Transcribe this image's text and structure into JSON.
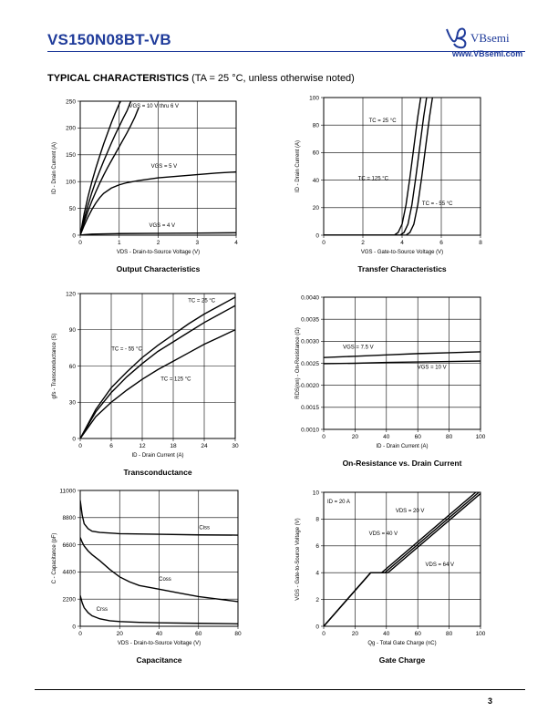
{
  "header": {
    "part_number": "VS150N08BT-VB",
    "brand_name": "VBsemi",
    "brand_url": "www.VBsemi.com"
  },
  "section": {
    "heading_bold": "TYPICAL CHARACTERISTICS",
    "heading_rest": " (TA = 25 °C, unless otherwise noted)"
  },
  "page_number": "3",
  "colors": {
    "brand": "#1f3b9a",
    "line": "#000000"
  },
  "chart_data": [
    {
      "id": "output",
      "type": "line",
      "title": "Output Characteristics",
      "xlabel": "VDS - Drain-to-Source Voltage (V)",
      "ylabel": "ID - Drain Current (A)",
      "xlim": [
        0,
        4
      ],
      "ylim": [
        0,
        250
      ],
      "xticks": [
        0,
        1,
        2,
        3,
        4
      ],
      "yticks": [
        0,
        50,
        100,
        150,
        200,
        250
      ],
      "xtick_labels": [
        "0",
        "1",
        "2",
        "3",
        "4"
      ],
      "ytick_labels": [
        "0",
        "50",
        "100",
        "150",
        "200",
        "250"
      ],
      "grid": true,
      "series": [
        {
          "name": "VGS = 10 V thru 6 V",
          "x": [
            0,
            0.1,
            0.2,
            0.3,
            0.4,
            0.5,
            0.6,
            0.7,
            0.8,
            0.9,
            1.0,
            1.08
          ],
          "y": [
            0,
            40,
            72,
            100,
            125,
            148,
            170,
            190,
            210,
            228,
            245,
            255
          ]
        },
        {
          "name": "",
          "x": [
            0,
            0.1,
            0.2,
            0.3,
            0.4,
            0.5,
            0.6,
            0.7,
            0.8,
            0.9,
            1.0,
            1.1,
            1.2,
            1.3
          ],
          "y": [
            0,
            30,
            56,
            80,
            101,
            120,
            138,
            155,
            172,
            188,
            203,
            218,
            232,
            250
          ]
        },
        {
          "name": "",
          "x": [
            0,
            0.1,
            0.2,
            0.3,
            0.4,
            0.5,
            0.6,
            0.7,
            0.8,
            0.9,
            1.0,
            1.1,
            1.2,
            1.3,
            1.4,
            1.5
          ],
          "y": [
            0,
            24,
            45,
            64,
            81,
            97,
            112,
            126,
            139,
            152,
            165,
            178,
            191,
            205,
            220,
            238
          ]
        },
        {
          "name": "VGS = 5 V",
          "x": [
            0,
            0.1,
            0.2,
            0.3,
            0.4,
            0.5,
            0.6,
            0.8,
            1.0,
            1.2,
            1.5,
            2.0,
            2.5,
            3.0,
            3.5,
            4.0
          ],
          "y": [
            0,
            18,
            34,
            48,
            60,
            70,
            78,
            88,
            94,
            98,
            102,
            107,
            110,
            113,
            116,
            118
          ]
        },
        {
          "name": "VGS = 4 V",
          "x": [
            0,
            0.1,
            0.3,
            0.6,
            1.0,
            2.0,
            3.0,
            4.0
          ],
          "y": [
            0,
            1,
            2,
            2.5,
            3,
            3.5,
            4,
            4.5
          ]
        }
      ]
    },
    {
      "id": "transfer",
      "type": "line",
      "title": "Transfer Characteristics",
      "xlabel": "VGS - Gate-to-Source Voltage (V)",
      "ylabel": "ID - Drain Current (A)",
      "xlim": [
        0,
        8
      ],
      "ylim": [
        0,
        100
      ],
      "xticks": [
        0,
        2,
        4,
        6,
        8
      ],
      "yticks": [
        0,
        20,
        40,
        60,
        80,
        100
      ],
      "xtick_labels": [
        "0",
        "2",
        "4",
        "6",
        "8"
      ],
      "ytick_labels": [
        "0",
        "20",
        "40",
        "60",
        "80",
        "100"
      ],
      "grid": true,
      "series": [
        {
          "name": "TC = 125 °C",
          "x": [
            0,
            3.6,
            3.8,
            4.0,
            4.2,
            4.4,
            4.6,
            4.8,
            4.95
          ],
          "y": [
            0,
            0,
            2,
            8,
            22,
            42,
            64,
            86,
            100
          ]
        },
        {
          "name": "TC = 25 °C",
          "x": [
            0,
            3.9,
            4.1,
            4.3,
            4.5,
            4.7,
            4.9,
            5.1,
            5.25
          ],
          "y": [
            0,
            0,
            2,
            8,
            22,
            42,
            64,
            86,
            100
          ]
        },
        {
          "name": "TC = - 55 °C",
          "x": [
            0,
            4.2,
            4.4,
            4.6,
            4.8,
            5.0,
            5.2,
            5.4,
            5.55
          ],
          "y": [
            0,
            0,
            2,
            8,
            22,
            42,
            64,
            86,
            100
          ]
        }
      ]
    },
    {
      "id": "transconductance",
      "type": "line",
      "title": "Transconductance",
      "xlabel": "ID - Drain Current (A)",
      "ylabel": "gfs - Transconductance (S)",
      "xlim": [
        0,
        30
      ],
      "ylim": [
        0,
        120
      ],
      "xticks": [
        0,
        6,
        12,
        18,
        24,
        30
      ],
      "yticks": [
        0,
        30,
        60,
        90,
        120
      ],
      "xtick_labels": [
        "0",
        "6",
        "12",
        "18",
        "24",
        "30"
      ],
      "ytick_labels": [
        "0",
        "30",
        "60",
        "90",
        "120"
      ],
      "grid": true,
      "series": [
        {
          "name": "TC = 25 °C",
          "x": [
            0,
            3,
            6,
            9,
            12,
            15,
            18,
            21,
            24,
            27,
            30
          ],
          "y": [
            0,
            24,
            42,
            55,
            67,
            77,
            86,
            95,
            103,
            110,
            117
          ]
        },
        {
          "name": "TC = - 55 °C",
          "x": [
            0,
            3,
            6,
            9,
            12,
            15,
            18,
            21,
            24,
            27,
            30
          ],
          "y": [
            0,
            22,
            38,
            51,
            62,
            72,
            80,
            88,
            96,
            103,
            110
          ]
        },
        {
          "name": "TC = 125 °C",
          "x": [
            0,
            3,
            6,
            9,
            12,
            15,
            18,
            21,
            24,
            27,
            30
          ],
          "y": [
            0,
            18,
            30,
            40,
            49,
            57,
            64,
            71,
            78,
            84,
            90
          ]
        }
      ]
    },
    {
      "id": "on-resistance",
      "type": "line",
      "title": "On-Resistance vs. Drain Current",
      "xlabel": "ID - Drain Current (A)",
      "ylabel": "RDS(on) - On-Resistance (Ω)",
      "xlim": [
        0,
        100
      ],
      "ylim": [
        0.001,
        0.004
      ],
      "xticks": [
        0,
        20,
        40,
        60,
        80,
        100
      ],
      "yticks": [
        0.001,
        0.0015,
        0.002,
        0.0025,
        0.003,
        0.0035,
        0.004
      ],
      "xtick_labels": [
        "0",
        "20",
        "40",
        "60",
        "80",
        "100"
      ],
      "ytick_labels": [
        "0.0010",
        "0.0015",
        "0.0020",
        "0.0025",
        "0.0030",
        "0.0035",
        "0.0040"
      ],
      "grid": true,
      "series": [
        {
          "name": "VGS = 7.5 V",
          "x": [
            0,
            20,
            40,
            60,
            80,
            100
          ],
          "y": [
            0.00263,
            0.00266,
            0.00269,
            0.00272,
            0.00274,
            0.00276
          ]
        },
        {
          "name": "VGS = 10 V",
          "x": [
            0,
            20,
            40,
            60,
            80,
            100
          ],
          "y": [
            0.00249,
            0.0025,
            0.00252,
            0.00253,
            0.00254,
            0.00255
          ]
        }
      ]
    },
    {
      "id": "capacitance",
      "type": "line",
      "title": "Capacitance",
      "xlabel": "VDS - Drain-to-Source Voltage (V)",
      "ylabel": "C - Capacitance (pF)",
      "xlim": [
        0,
        80
      ],
      "ylim": [
        0,
        11000
      ],
      "xticks": [
        0,
        20,
        40,
        60,
        80
      ],
      "yticks": [
        0,
        2200,
        4400,
        6600,
        8800,
        11000
      ],
      "xtick_labels": [
        "0",
        "20",
        "40",
        "60",
        "80"
      ],
      "ytick_labels": [
        "0",
        "2200",
        "4400",
        "6600",
        "8800",
        "11000"
      ],
      "grid": true,
      "series": [
        {
          "name": "Ciss",
          "x": [
            0,
            1,
            2,
            4,
            6,
            10,
            20,
            40,
            60,
            80
          ],
          "y": [
            10200,
            9000,
            8300,
            7900,
            7700,
            7600,
            7500,
            7450,
            7400,
            7380
          ]
        },
        {
          "name": "Coss",
          "x": [
            0,
            1,
            2,
            4,
            6,
            10,
            15,
            20,
            25,
            30,
            40,
            50,
            60,
            70,
            80
          ],
          "y": [
            7200,
            6800,
            6500,
            6100,
            5800,
            5300,
            4600,
            4000,
            3600,
            3300,
            3000,
            2700,
            2400,
            2200,
            2000
          ]
        },
        {
          "name": "Crss",
          "x": [
            0,
            1,
            2,
            4,
            6,
            10,
            15,
            20,
            30,
            40,
            60,
            80
          ],
          "y": [
            2500,
            1900,
            1500,
            1100,
            850,
            600,
            450,
            380,
            320,
            280,
            240,
            200
          ]
        }
      ]
    },
    {
      "id": "gate-charge",
      "type": "line",
      "title": "Gate Charge",
      "xlabel": "Qg - Total Gate Charge (nC)",
      "ylabel": "VGS - Gate-to-Source Voltage (V)",
      "xlim": [
        0,
        100
      ],
      "ylim": [
        0,
        10
      ],
      "xticks": [
        0,
        20,
        40,
        60,
        80,
        100
      ],
      "yticks": [
        0,
        2,
        4,
        6,
        8,
        10
      ],
      "xtick_labels": [
        "0",
        "20",
        "40",
        "60",
        "80",
        "100"
      ],
      "ytick_labels": [
        "0",
        "2",
        "4",
        "6",
        "8",
        "10"
      ],
      "grid": true,
      "annotations": [
        "ID = 20 A"
      ],
      "series": [
        {
          "name": "VDS = 20 V",
          "x": [
            0,
            30,
            37,
            97
          ],
          "y": [
            0,
            4,
            4,
            10
          ]
        },
        {
          "name": "VDS = 40 V",
          "x": [
            0,
            30,
            39,
            99
          ],
          "y": [
            0,
            4,
            4,
            10
          ]
        },
        {
          "name": "VDS = 64 V",
          "x": [
            0,
            30,
            41,
            101
          ],
          "y": [
            0,
            4,
            4,
            10
          ]
        }
      ]
    }
  ]
}
